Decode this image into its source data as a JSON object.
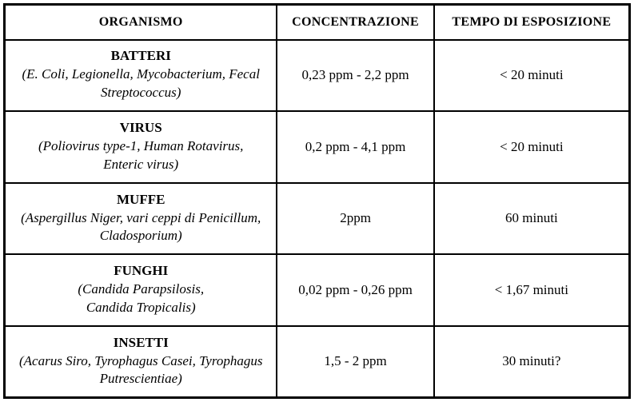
{
  "table": {
    "headers": [
      "ORGANISMO",
      "CONCENTRAZIONE",
      "TEMPO DI ESPOSIZIONE"
    ],
    "rows": [
      {
        "organism": "BATTERI",
        "species": "(E. Coli, Legionella, Mycobacterium, Fecal\nStreptococcus)",
        "concentration": "0,23 ppm - 2,2 ppm",
        "time": "< 20 minuti"
      },
      {
        "organism": "VIRUS",
        "species": "(Poliovirus type-1, Human Rotavirus,\nEnteric virus)",
        "concentration": "0,2 ppm - 4,1 ppm",
        "time": "< 20 minuti"
      },
      {
        "organism": "MUFFE",
        "species": "(Aspergillus Niger, vari ceppi di Penicillum,\nCladosporium)",
        "concentration": "2ppm",
        "time": "60 minuti"
      },
      {
        "organism": "FUNGHI",
        "species": "(Candida Parapsilosis,\nCandida Tropicalis)",
        "concentration": "0,02 ppm - 0,26 ppm",
        "time": "< 1,67 minuti"
      },
      {
        "organism": "INSETTI",
        "species": "(Acarus Siro, Tyrophagus Casei, Tyrophagus\nPutrescientiae)",
        "concentration": "1,5 - 2 ppm",
        "time": "30 minuti?"
      }
    ],
    "colors": {
      "border": "#000000",
      "background": "#ffffff",
      "text": "#000000"
    }
  }
}
